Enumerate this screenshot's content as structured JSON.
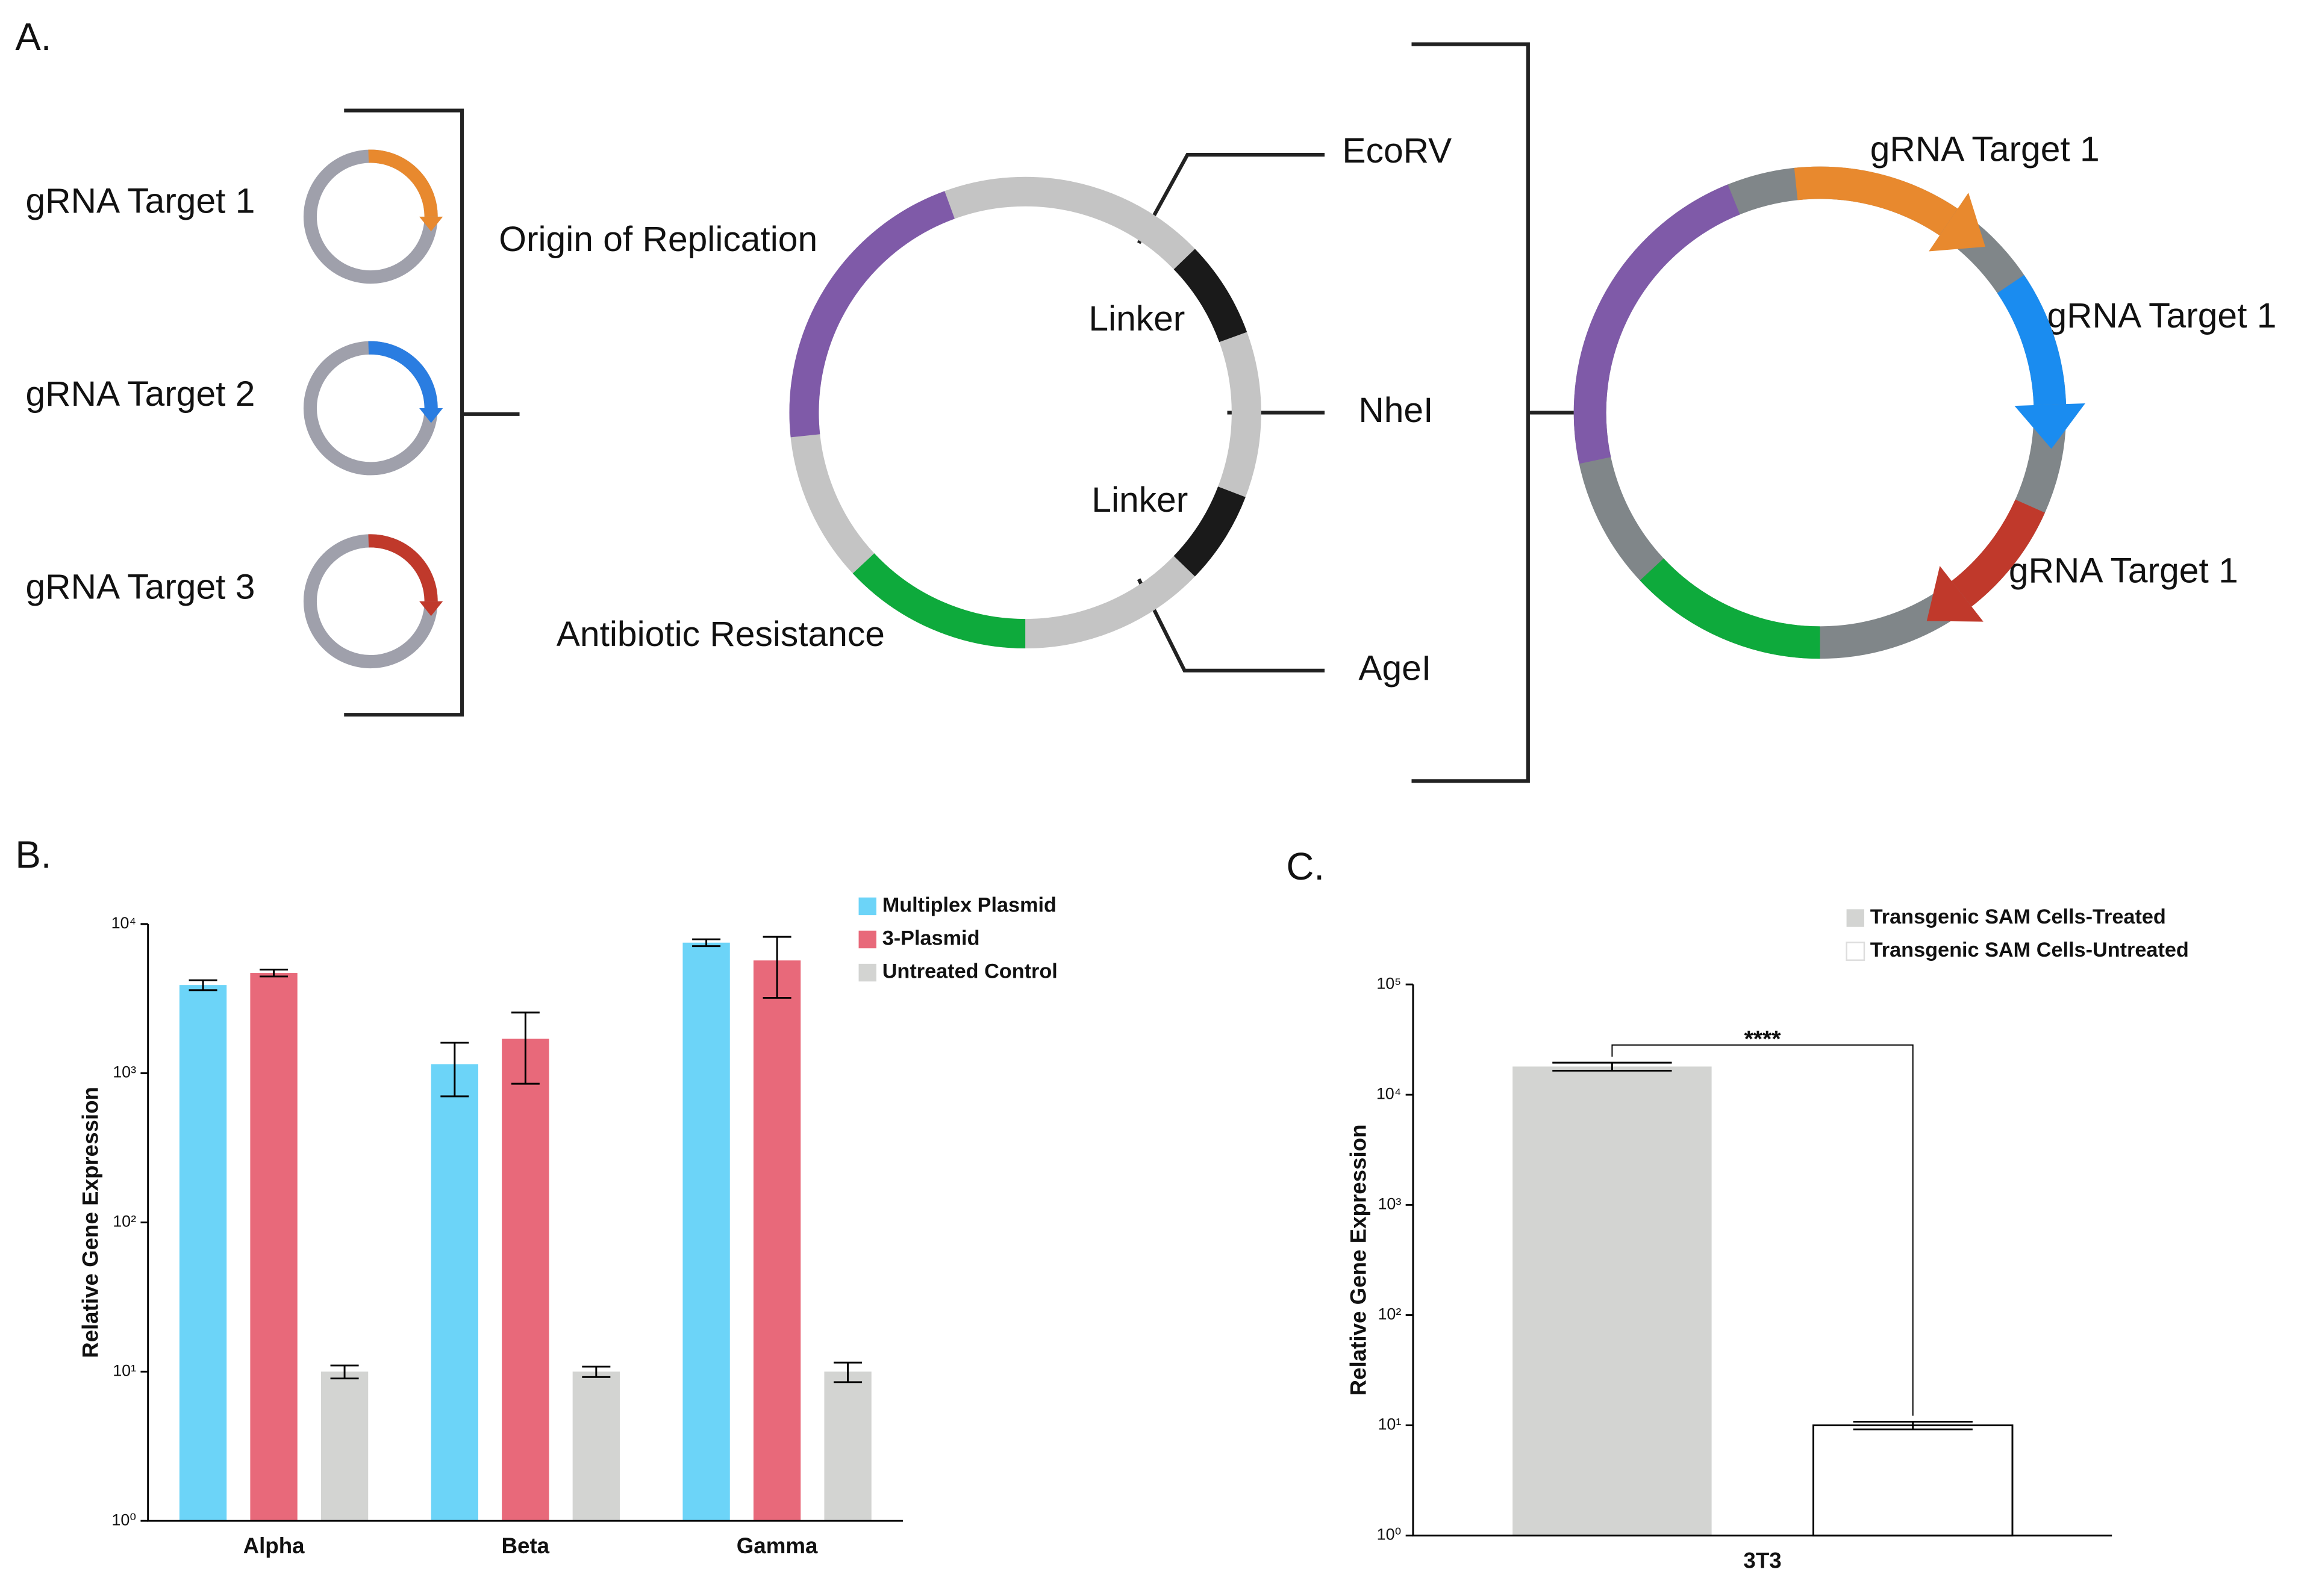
{
  "panel_labels": [
    "A.",
    "B.",
    "C."
  ],
  "diagram": {
    "inputs": [
      "gRNA Target 1",
      "gRNA Target 2",
      "gRNA Target 3"
    ],
    "backbone": {
      "origin": "Origin of Replication",
      "linkers": [
        "Linker",
        "Linker"
      ],
      "resistance": "Antibiotic Resistance",
      "sites": [
        "EcoRV",
        "NheI",
        "AgeI"
      ]
    },
    "product": {
      "inserts": [
        "gRNA Target 1",
        "gRNA Target 1",
        "gRNA Target 1"
      ]
    }
  },
  "chart_data": [
    {
      "type": "bar",
      "y_label": "Relative Gene Expression",
      "categories": [
        "Alpha",
        "Beta",
        "Gamma"
      ],
      "series": [
        {
          "name": "Multiplex Plasmid",
          "color": "#6cd4f8",
          "values": [
            3900,
            1150,
            7500
          ],
          "errors": [
            300,
            450,
            400
          ]
        },
        {
          "name": "3-Plasmid",
          "color": "#e8697a",
          "values": [
            4700,
            1700,
            5700
          ],
          "errors": [
            250,
            850,
            2500
          ]
        },
        {
          "name": "Untreated Control",
          "color": "#d3d4d2",
          "values": [
            10,
            10,
            10
          ],
          "errors": [
            1,
            0.8,
            1.5
          ]
        }
      ],
      "ylim": [
        1,
        10000
      ],
      "yticks": [
        {
          "value": 1,
          "label": "10⁰"
        },
        {
          "value": 10,
          "label": "10¹"
        },
        {
          "value": 100,
          "label": "10²"
        },
        {
          "value": 1000,
          "label": "10³"
        },
        {
          "value": 10000,
          "label": "10⁴"
        }
      ],
      "log_y": true,
      "legend": "upper right"
    },
    {
      "type": "bar",
      "y_label": "Relative Gene Expression",
      "categories": [
        "3T3"
      ],
      "series": [
        {
          "name": "Transgenic SAM Cells-Treated",
          "color": "#d3d4d2",
          "values": [
            18000
          ],
          "errors": [
            1500
          ]
        },
        {
          "name": "Transgenic SAM Cells-Untreated",
          "color": "#ffffff",
          "values": [
            10
          ],
          "errors": [
            0.8
          ]
        }
      ],
      "ylim": [
        1,
        100000
      ],
      "yticks": [
        {
          "value": 1,
          "label": "10⁰"
        },
        {
          "value": 10,
          "label": "10¹"
        },
        {
          "value": 100,
          "label": "10²"
        },
        {
          "value": 1000,
          "label": "10³"
        },
        {
          "value": 10000,
          "label": "10⁴"
        },
        {
          "value": 100000,
          "label": "10⁵"
        }
      ],
      "log_y": true,
      "annotation": "****",
      "legend": "upper right"
    }
  ]
}
